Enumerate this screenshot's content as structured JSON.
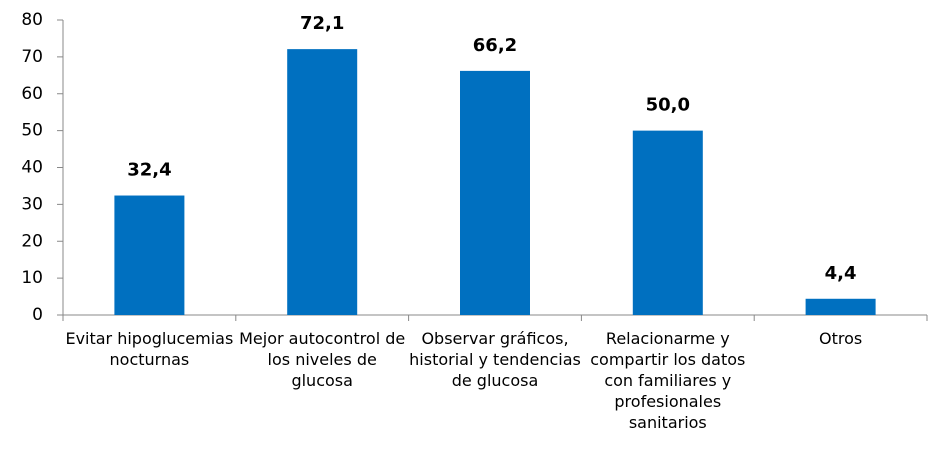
{
  "chart_data": {
    "type": "bar",
    "categories": [
      "Evitar hipoglucemias nocturnas",
      "Mejor autocontrol de los niveles de glucosa",
      "Observar gráficos, historial y tendencias de glucosa",
      "Relacionarme y compartir los datos con familiares y profesionales sanitarios",
      "Otros"
    ],
    "values": [
      32.4,
      72.1,
      66.2,
      50.0,
      4.4
    ],
    "value_labels": [
      "32,4",
      "72,1",
      "66,2",
      "50,0",
      "4,4"
    ],
    "color": "#0070c0",
    "ylim": [
      0,
      80
    ],
    "yticks": [
      0,
      10,
      20,
      30,
      40,
      50,
      60,
      70,
      80
    ],
    "grid": false
  }
}
